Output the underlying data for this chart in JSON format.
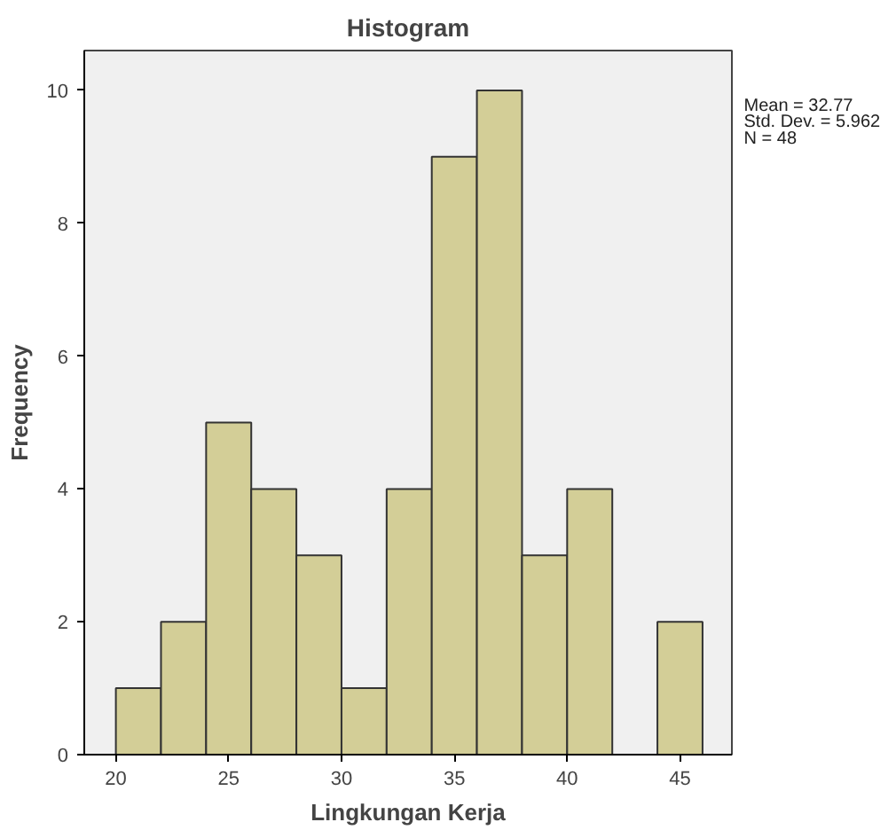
{
  "chart_data": {
    "type": "histogram",
    "title": "Histogram",
    "xlabel": "Lingkungan Kerja",
    "ylabel": "Frequency",
    "bins": [
      20,
      22,
      24,
      26,
      28,
      30,
      32,
      34,
      36,
      38,
      40,
      42,
      44,
      46
    ],
    "values": [
      1,
      2,
      5,
      4,
      3,
      1,
      4,
      9,
      10,
      3,
      4,
      0,
      2
    ],
    "color": "#d3ce97",
    "xlim": [
      18.6,
      47.3
    ],
    "xticks": [
      20,
      25,
      30,
      35,
      40,
      45
    ],
    "ylim": [
      0,
      10.6
    ],
    "yticks": [
      0,
      2,
      4,
      6,
      8,
      10
    ],
    "grid": false,
    "annotations": [
      "Mean = 32.77",
      "Std. Dev. = 5.962",
      "N = 48"
    ]
  }
}
